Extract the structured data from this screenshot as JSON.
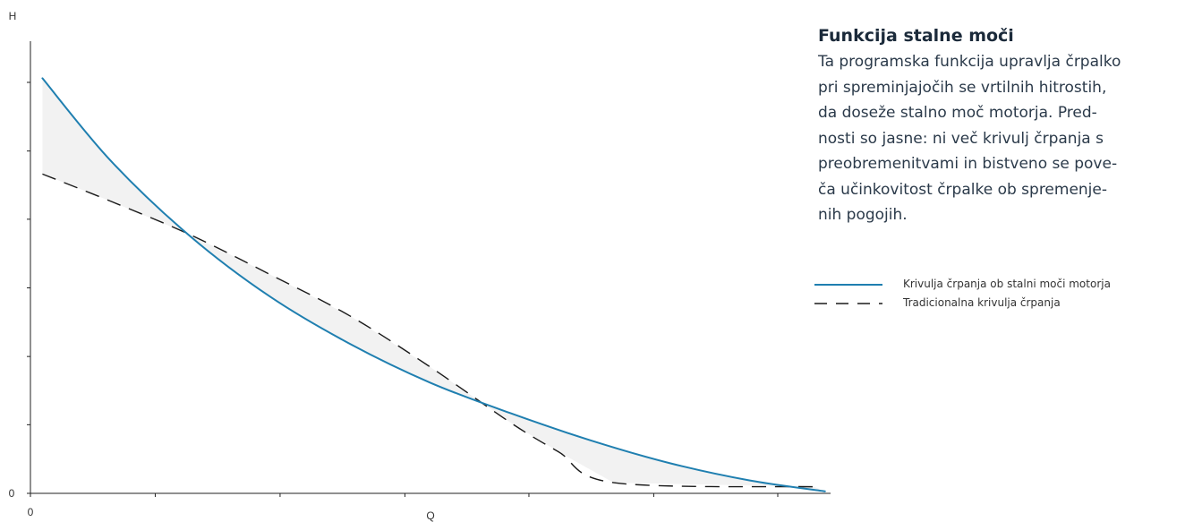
{
  "info": {
    "title": "Funkcija stalne moči",
    "body": "Ta programska funkcija upravlja črpalko\npri spreminjajočih se vrtilnih hitrostih,\nda doseže stalno moč motorja. Pred-\nnosti so jasne: ni več krivulj črpanja s\npreobremenitvami in bistveno se pove-\nča učinkovitost črpalke ob spremenje-\nnih pogojih."
  },
  "chart_data": {
    "type": "line",
    "xlabel": "Q",
    "ylabel": "H",
    "xlim": [
      0,
      100
    ],
    "ylim": [
      0,
      100
    ],
    "x_tick_labels": [
      "0"
    ],
    "y_tick_labels": [
      "0"
    ],
    "x_ticks": [
      0,
      15.6,
      31.2,
      46.8,
      62.3,
      77.9,
      93.4
    ],
    "y_ticks": [
      0,
      16.7,
      33.3,
      50,
      66.7,
      83.3,
      100
    ],
    "grid": false,
    "shaded_region": "between series",
    "series": [
      {
        "name": "Krivulja črpanja ob stalni moči motorja",
        "color": "#1f7fb0",
        "style": "solid",
        "x": [
          1.5,
          10,
          20,
          30,
          40,
          50,
          60,
          70,
          80,
          90,
          99.3
        ],
        "y": [
          101,
          81,
          62.5,
          47.8,
          36.3,
          26.9,
          19.5,
          12.9,
          7.3,
          3.1,
          0.5
        ]
      },
      {
        "name": "Tradicionalna krivulja črpanja",
        "color": "#1a1a1a",
        "style": "dashed",
        "x": [
          1.5,
          10,
          20,
          30,
          40,
          50,
          60,
          66,
          72.9,
          97.9
        ],
        "y": [
          77.7,
          71.1,
          62.9,
          53.2,
          43.1,
          30.7,
          17.2,
          10.1,
          2.6,
          1.6
        ]
      }
    ]
  }
}
